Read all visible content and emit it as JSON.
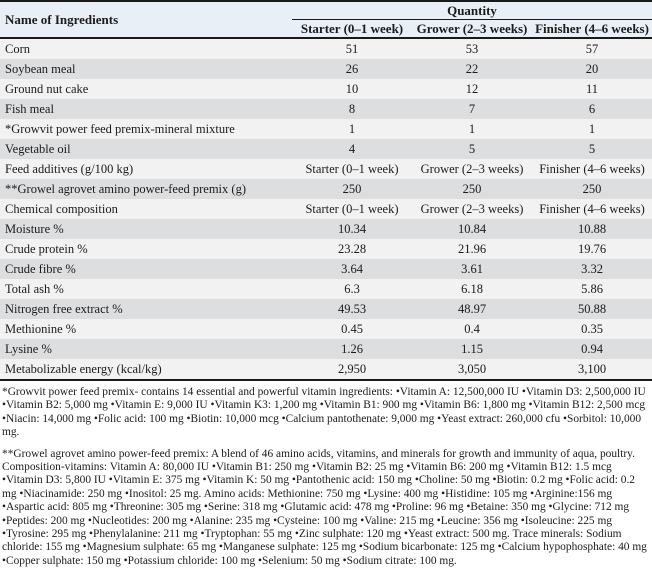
{
  "table": {
    "header": {
      "name_col": "Name of Ingredients",
      "quantity": "Quantity",
      "starter": "Starter (0–1 week)",
      "grower": "Grower (2–3 weeks)",
      "finisher": "Finisher (4–6 weeks)"
    },
    "rows": [
      {
        "label": "Corn",
        "starter": "51",
        "grower": "53",
        "finisher": "57"
      },
      {
        "label": "Soybean meal",
        "starter": "26",
        "grower": "22",
        "finisher": "20"
      },
      {
        "label": "Ground nut cake",
        "starter": "10",
        "grower": "12",
        "finisher": "11"
      },
      {
        "label": "Fish meal",
        "starter": "8",
        "grower": "7",
        "finisher": "6"
      },
      {
        "label": "*Growvit power feed premix-mineral mixture",
        "starter": "1",
        "grower": "1",
        "finisher": "1"
      },
      {
        "label": "Vegetable oil",
        "starter": "4",
        "grower": "5",
        "finisher": "5"
      },
      {
        "label": "Feed additives (g/100 kg)",
        "starter": "Starter (0–1 week)",
        "grower": "Grower (2–3 weeks)",
        "finisher": "Finisher (4–6 weeks)"
      },
      {
        "label": "**Growel agrovet amino power-feed premix (g)",
        "starter": "250",
        "grower": "250",
        "finisher": "250"
      },
      {
        "label": "Chemical composition",
        "starter": "Starter (0–1 week)",
        "grower": "Grower (2–3 weeks)",
        "finisher": "Finisher (4–6 weeks)"
      },
      {
        "label": "Moisture %",
        "starter": "10.34",
        "grower": "10.84",
        "finisher": "10.88"
      },
      {
        "label": "Crude protein %",
        "starter": "23.28",
        "grower": "21.96",
        "finisher": "19.76"
      },
      {
        "label": "Crude fibre %",
        "starter": "3.64",
        "grower": "3.61",
        "finisher": "3.32"
      },
      {
        "label": "Total ash %",
        "starter": "6.3",
        "grower": "6.18",
        "finisher": "5.86"
      },
      {
        "label": "Nitrogen free extract %",
        "starter": "49.53",
        "grower": "48.97",
        "finisher": "50.88"
      },
      {
        "label": "Methionine %",
        "starter": "0.45",
        "grower": "0.4",
        "finisher": "0.35"
      },
      {
        "label": "Lysine %",
        "starter": "1.26",
        "grower": "1.15",
        "finisher": "0.94"
      },
      {
        "label": "Metabolizable energy (kcal/kg)",
        "starter": "2,950",
        "grower": "3,050",
        "finisher": "3,100"
      }
    ]
  },
  "footnotes": {
    "growvit": "*Growvit power feed premix- contains 14 essential and powerful vitamin ingredients: •Vitamin A: 12,500,000 IU •Vitamin D3: 2,500,000 IU •Vitamin B2: 5,000 mg •Vitamin E: 9,000 IU •Vitamin K3: 1,200 mg •Vitamin B1: 900 mg •Vitamin B6: 1,800 mg •Vitamin B12: 2,500 mcg •Niacin: 14,000 mg •Folic acid: 100 mg •Biotin: 10,000 mcg •Calcium pantothenate: 9,000 mg •Yeast extract: 260,000 cfu •Sorbitol: 10,000 mg.",
    "growel": "**Growel agrovet amino power-feed premix: A blend of 46 amino acids, vitamins, and minerals for growth and immunity of aqua, poultry. Composition-vitamins: Vitamin A: 80,000 IU •Vitamin B1: 250 mg •Vitamin B2: 25 mg •Vitamin B6: 200 mg •Vitamin B12: 1.5 mcg •Vitamin D3: 5,800 IU •Vitamin E: 375 mg •Vitamin K: 50 mg •Pantothenic acid: 150 mg •Choline: 50 mg •Biotin: 0.2 mg •Folic acid: 0.2 mg •Niacinamide: 250 mg •Inositol: 25 mg. Amino acids: Methionine: 750 mg •Lysine: 400 mg •Histidine: 105 mg •Arginine:156 mg •Aspartic acid: 805 mg •Threonine: 305 mg •Serine: 318 mg •Glutamic acid: 478 mg •Proline: 96 mg •Betaine: 350 mg •Glycine: 712 mg •Peptides: 200 mg •Nucleotides: 200 mg •Alanine: 235 mg •Cysteine: 100 mg •Valine: 215 mg •Leucine: 356 mg •Isoleucine: 225 mg •Tyrosine: 295 mg •Phenylalanine: 211 mg •Tryptophan: 55 mg •Zinc sulphate: 120 mg •Yeast extract: 500 mg. Trace minerals: Sodium chloride: 155 mg •Magnesium sulphate: 65 mg •Manganese sulphate: 125 mg •Sodium bicarbonate: 125 mg •Calcium hypophosphate: 40 mg •Copper sulphate: 150 mg •Potassium chloride: 100 mg •Selenium: 50 mg •Sodium citrate: 100 mg."
  },
  "colors": {
    "header_bg": "#e9eff7",
    "row_light": "#f2f2f3",
    "row_dark": "#dcdee0",
    "border": "#1a1a1a",
    "text": "#1b1b1b"
  },
  "chart_data": {
    "type": "table",
    "title": "Quantity",
    "categories": [
      "Starter (0–1 week)",
      "Grower (2–3 weeks)",
      "Finisher (4–6 weeks)"
    ],
    "series": [
      {
        "name": "Corn",
        "values": [
          51,
          53,
          57
        ]
      },
      {
        "name": "Soybean meal",
        "values": [
          26,
          22,
          20
        ]
      },
      {
        "name": "Ground nut cake",
        "values": [
          10,
          12,
          11
        ]
      },
      {
        "name": "Fish meal",
        "values": [
          8,
          7,
          6
        ]
      },
      {
        "name": "*Growvit power feed premix-mineral mixture",
        "values": [
          1,
          1,
          1
        ]
      },
      {
        "name": "Vegetable oil",
        "values": [
          4,
          5,
          5
        ]
      },
      {
        "name": "**Growel agrovet amino power-feed premix (g)",
        "values": [
          250,
          250,
          250
        ]
      },
      {
        "name": "Moisture %",
        "values": [
          10.34,
          10.84,
          10.88
        ]
      },
      {
        "name": "Crude protein %",
        "values": [
          23.28,
          21.96,
          19.76
        ]
      },
      {
        "name": "Crude fibre %",
        "values": [
          3.64,
          3.61,
          3.32
        ]
      },
      {
        "name": "Total ash %",
        "values": [
          6.3,
          6.18,
          5.86
        ]
      },
      {
        "name": "Nitrogen free extract %",
        "values": [
          49.53,
          48.97,
          50.88
        ]
      },
      {
        "name": "Methionine %",
        "values": [
          0.45,
          0.4,
          0.35
        ]
      },
      {
        "name": "Lysine %",
        "values": [
          1.26,
          1.15,
          0.94
        ]
      },
      {
        "name": "Metabolizable energy (kcal/kg)",
        "values": [
          2950,
          3050,
          3100
        ]
      }
    ]
  }
}
